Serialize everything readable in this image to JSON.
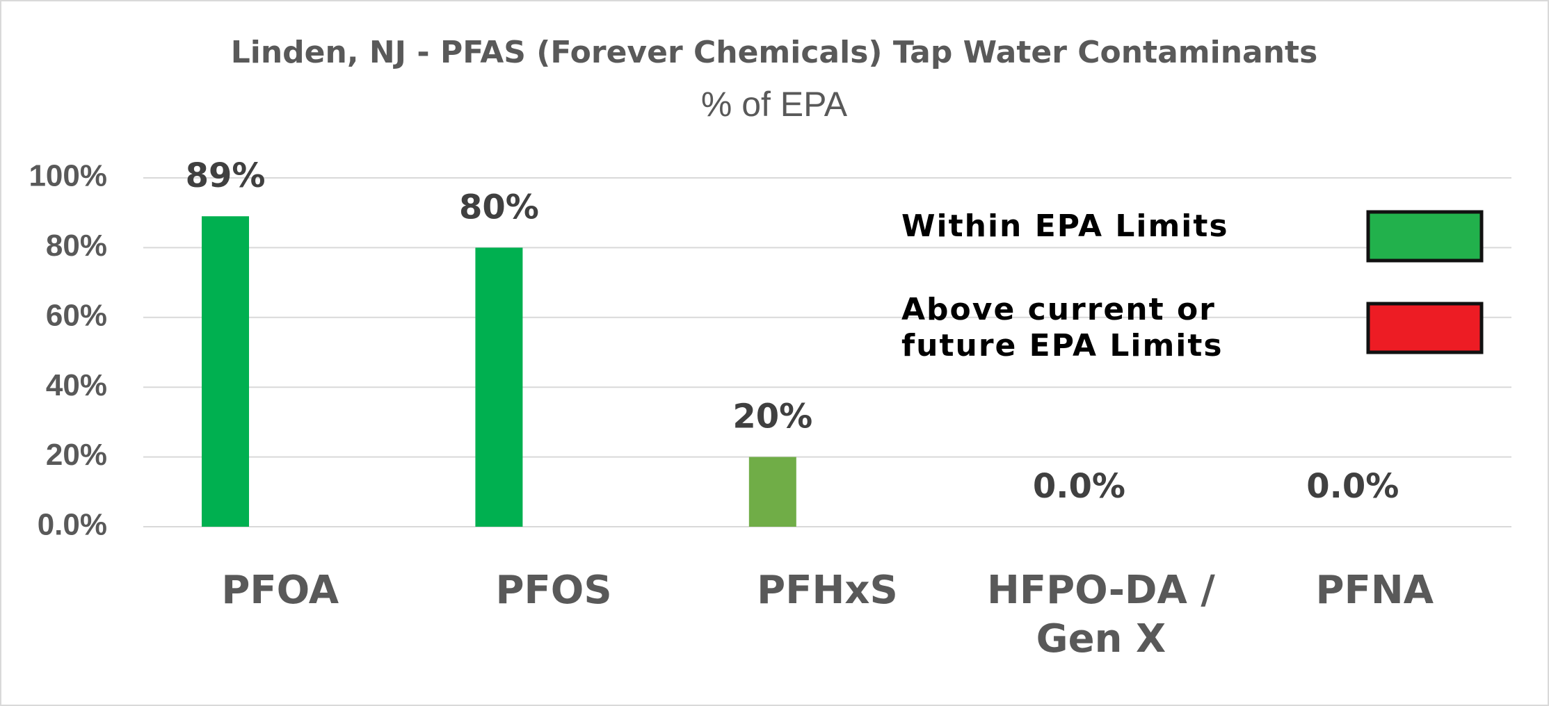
{
  "chart_data": {
    "type": "bar",
    "title": "Linden, NJ - PFAS (Forever Chemicals) Tap Water Contaminants",
    "subtitle": "% of EPA",
    "categories": [
      "PFOA",
      "PFOS",
      "PFHxS",
      "HFPO-DA / Gen X",
      "PFNA"
    ],
    "values": [
      89,
      80,
      20,
      0,
      0
    ],
    "value_labels": [
      "89%",
      "80%",
      "20%",
      "0.0%",
      "0.0%"
    ],
    "colors": [
      "#00b050",
      "#00b050",
      "#70ad47",
      "#00b050",
      "#00b050"
    ],
    "ylim": [
      0,
      100
    ],
    "yticks": [
      {
        "value": 0,
        "label": "0.0%"
      },
      {
        "value": 20,
        "label": "20%"
      },
      {
        "value": 40,
        "label": "40%"
      },
      {
        "value": 60,
        "label": "60%"
      },
      {
        "value": 80,
        "label": "80%"
      },
      {
        "value": 100,
        "label": "100%"
      }
    ],
    "grid": true,
    "legend": [
      {
        "label": "Within EPA Limits",
        "color": "#22b14c"
      },
      {
        "label": "Above current or future EPA Limits",
        "color": "#ed1c24"
      }
    ]
  }
}
